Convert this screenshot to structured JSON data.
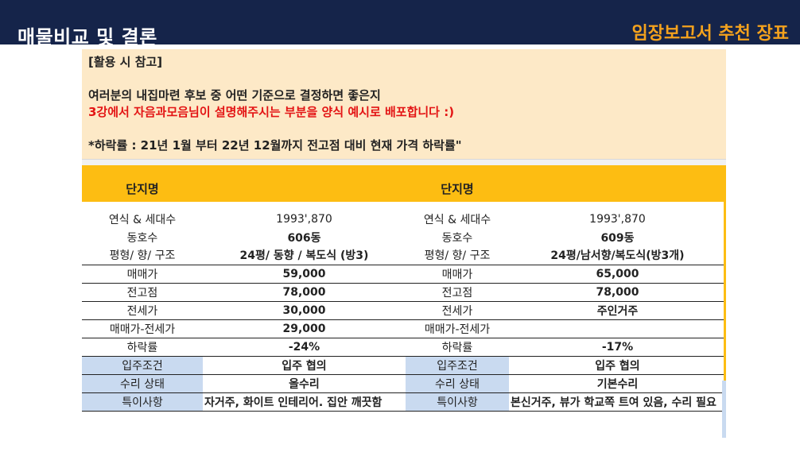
{
  "header": {
    "title": "매물비교 및 결론",
    "right_label": "임장보고서 추천 장표"
  },
  "note": {
    "line1": "[활용 시 참고]",
    "line2": "여러분의 내집마련 후보 중 어떤 기준으로 결정하면 좋은지",
    "line3": "3강에서 자음과모음님이 설명해주시는 부분을 양식 예시로 배포합니다 :)",
    "line4": "*하락률 : 21년 1월 부터 22년 12월까지  전고점 대비 현재 가격 하락률\""
  },
  "table": {
    "head": {
      "left_label": "단지명",
      "left_value": "",
      "right_label": "단지명",
      "right_value": ""
    },
    "rows": [
      {
        "left_label": "연식 & 세대수",
        "left_value": "1993',870",
        "right_label": "연식 & 세대수",
        "right_value": "1993',870"
      },
      {
        "left_label": "동호수",
        "left_value": "606동",
        "right_label": "동호수",
        "right_value": "609동"
      },
      {
        "left_label": "평형/ 향/ 구조",
        "left_value": "24평/ 동향 / 복도식 (방3)",
        "right_label": "평형/ 향/ 구조",
        "right_value": "24평/남서향/복도식(방3개)"
      },
      {
        "left_label": "매매가",
        "left_value": "59,000",
        "right_label": "매매가",
        "right_value": "65,000"
      },
      {
        "left_label": "전고점",
        "left_value": "78,000",
        "right_label": "전고점",
        "right_value": "78,000"
      },
      {
        "left_label": "전세가",
        "left_value": "30,000",
        "right_label": "전세가",
        "right_value": "주인거주"
      },
      {
        "left_label": "매매가-전세가",
        "left_value": "29,000",
        "right_label": "매매가-전세가",
        "right_value": ""
      },
      {
        "left_label": "하락률",
        "left_value": "-24%",
        "right_label": "하락률",
        "right_value": "-17%"
      },
      {
        "left_label": "입주조건",
        "left_value": "입주 협의",
        "right_label": "입주조건",
        "right_value": "입주 협의"
      },
      {
        "left_label": "수리 상태",
        "left_value": "올수리",
        "right_label": "수리 상태",
        "right_value": "기본수리"
      },
      {
        "left_label": "특이사항",
        "left_value": "자거주, 화이트 인테리어. 집안 깨끗함",
        "right_label": "특이사항",
        "right_value": "본신거주, 뷰가 학교쪽 트여 있음, 수리 필요"
      }
    ]
  },
  "colors": {
    "header_band": "#15244a",
    "accent_orange": "#f4a21d",
    "note_bg": "#fde9c7",
    "table_head": "#fdbd12",
    "blue_label": "#c9daf0",
    "red_text": "#e31414"
  }
}
